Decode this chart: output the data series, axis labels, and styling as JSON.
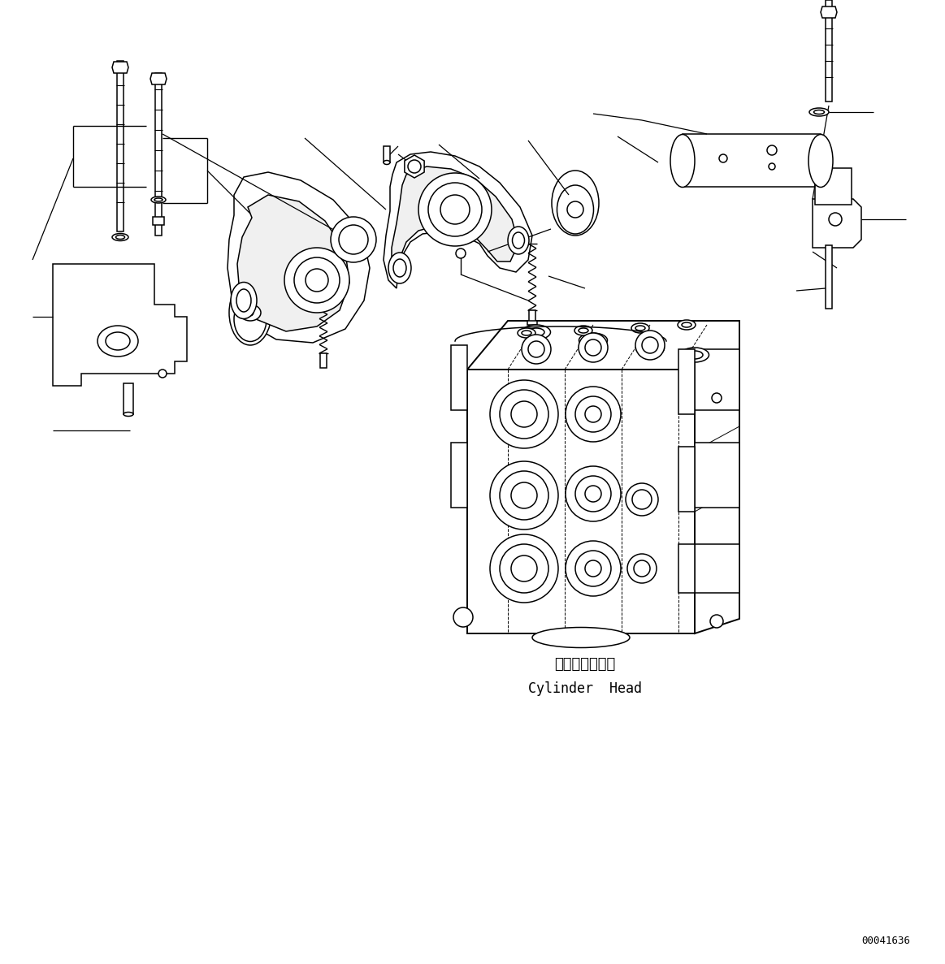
{
  "background_color": "#ffffff",
  "line_color": "#000000",
  "text_color": "#000000",
  "part_label_jp": "シリンダヘッド",
  "part_label_en": "Cylinder  Head",
  "doc_number": "00041636",
  "figsize": [
    11.63,
    11.87
  ],
  "dpi": 100
}
